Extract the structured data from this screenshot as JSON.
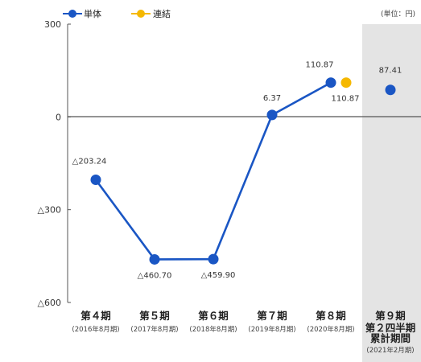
{
  "chart_data": {
    "type": "line",
    "unit_label": "(単位：円)",
    "legend": [
      {
        "name": "単体",
        "color": "#1a56c4"
      },
      {
        "name": "連結",
        "color": "#f5b800"
      }
    ],
    "y_axis": {
      "ylim": [
        -600,
        300
      ],
      "ticks": [
        {
          "value": 300,
          "label": "300"
        },
        {
          "value": 0,
          "label": "0"
        },
        {
          "value": -300,
          "label": "△300"
        },
        {
          "value": -600,
          "label": "△600"
        }
      ]
    },
    "categories": [
      {
        "main": "第４期",
        "sub": [
          "(2016年8月期)"
        ]
      },
      {
        "main": "第５期",
        "sub": [
          "(2017年8月期)"
        ]
      },
      {
        "main": "第６期",
        "sub": [
          "(2018年8月期)"
        ]
      },
      {
        "main": "第７期",
        "sub": [
          "(2019年8月期)"
        ]
      },
      {
        "main": "第８期",
        "sub": [
          "(2020年8月期)"
        ]
      },
      {
        "main": "第９期",
        "sub": [
          "第２四半期",
          "累計期間",
          "(2021年2月期)"
        ]
      }
    ],
    "highlight_category": 5,
    "series": [
      {
        "name": "単体",
        "color": "#1a56c4",
        "connected": [
          0,
          1,
          2,
          3,
          4
        ],
        "values": [
          -203.24,
          -460.7,
          -459.9,
          6.37,
          110.87,
          87.41
        ],
        "labels": [
          "△203.24",
          "△460.70",
          "△459.90",
          "6.37",
          "110.87",
          "87.41"
        ]
      },
      {
        "name": "連結",
        "color": "#f5b800",
        "points": [
          {
            "category": 4,
            "value": 110.87,
            "label": "110.87"
          }
        ]
      }
    ]
  }
}
